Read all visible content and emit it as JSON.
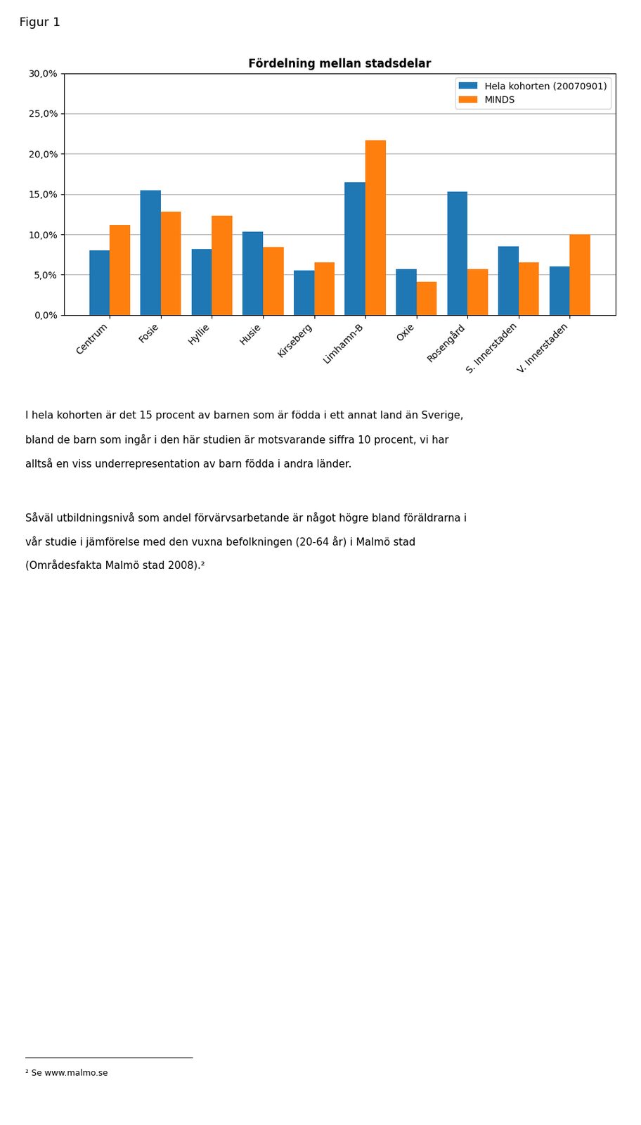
{
  "chart_data": {
    "type": "bar",
    "title": "Fördelning mellan stadsdelar",
    "categories": [
      "Centrum",
      "Fosie",
      "Hyllie",
      "Husie",
      "Kirseberg",
      "Limhamn-B",
      "Oxie",
      "Rosengård",
      "S. Innerstaden",
      "V. Innerstaden"
    ],
    "series": [
      {
        "name": "Hela kohorten (20070901)",
        "values": [
          0.08,
          0.155,
          0.082,
          0.103,
          0.055,
          0.165,
          0.057,
          0.153,
          0.085,
          0.06
        ]
      },
      {
        "name": "MINDS",
        "values": [
          0.112,
          0.128,
          0.123,
          0.084,
          0.065,
          0.217,
          0.041,
          0.057,
          0.065,
          0.1
        ]
      }
    ],
    "ylim": [
      0,
      0.3
    ],
    "yticks": [
      {
        "value": 0.0,
        "label": "0,0%"
      },
      {
        "value": 0.05,
        "label": "5,0%"
      },
      {
        "value": 0.1,
        "label": "10,0%"
      },
      {
        "value": 0.15,
        "label": "15,0%"
      },
      {
        "value": 0.2,
        "label": "20,0%"
      },
      {
        "value": 0.25,
        "label": "25,0%"
      },
      {
        "value": 0.3,
        "label": "30,0%"
      }
    ],
    "grid": true,
    "legend": "upper right",
    "annotations": [
      [
        "Figur 1"
      ],
      [
        "I hela kohorten är det 15 procent av barnen som är födda i ett annat land än Sverige,",
        "bland de barn som ingår i den här studien är motsvarande siffra 10 procent, vi har",
        "alltså en viss underrepresentation av barn födda i andra länder."
      ],
      [
        "Såväl utbildningsnivå som andel förvärvsarbetande är något högre bland föräldrarna i",
        "vår studie i jämförelse med den vuxna befolkningen (20-64 år) i Malmö stad",
        "(Områdesfakta Malmö stad 2008).²"
      ],
      [
        "² Se www.malmo.se"
      ]
    ]
  }
}
